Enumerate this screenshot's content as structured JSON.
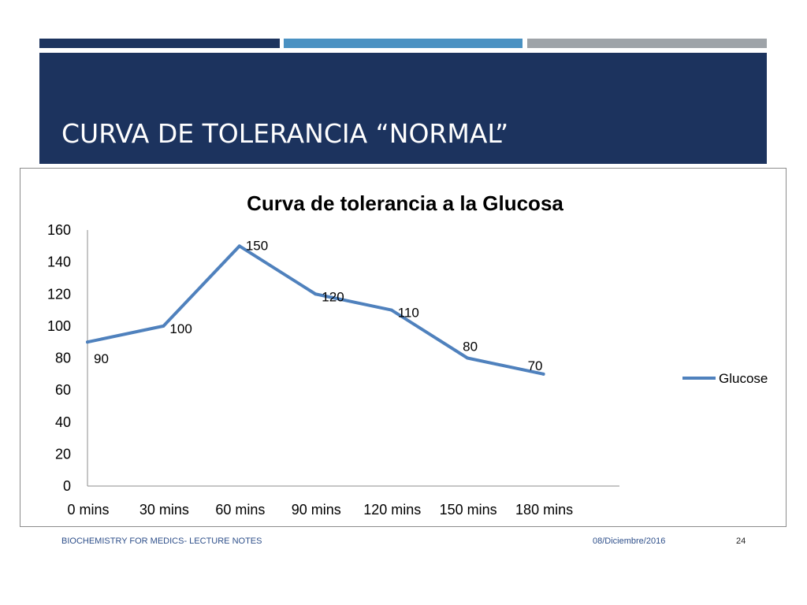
{
  "slide": {
    "title": "CURVA DE TOLERANCIA “NORMAL”",
    "colors": {
      "band": "#1c335e",
      "bar1": "#1c335e",
      "bar2": "#4a91c2",
      "bar3": "#9ea3a8",
      "footer_text": "#2e4f8a"
    }
  },
  "footer": {
    "course": "BIOCHEMISTRY FOR MEDICS- LECTURE NOTES",
    "date": "08/Diciembre/2016",
    "page": "24"
  },
  "chart_data": {
    "type": "line",
    "title": "Curva de tolerancia a la Glucosa",
    "categories": [
      "0 mins",
      "30 mins",
      "60 mins",
      "90 mins",
      "120 mins",
      "150 mins",
      "180 mins"
    ],
    "series": [
      {
        "name": "Glucose",
        "values": [
          90,
          100,
          150,
          120,
          110,
          80,
          70
        ],
        "color": "#4f81bd"
      }
    ],
    "yticks": [
      "0",
      "20",
      "40",
      "60",
      "80",
      "100",
      "120",
      "140",
      "160"
    ],
    "ylim": [
      0,
      160
    ],
    "data_labels": true,
    "grid": false,
    "legend": "right"
  }
}
